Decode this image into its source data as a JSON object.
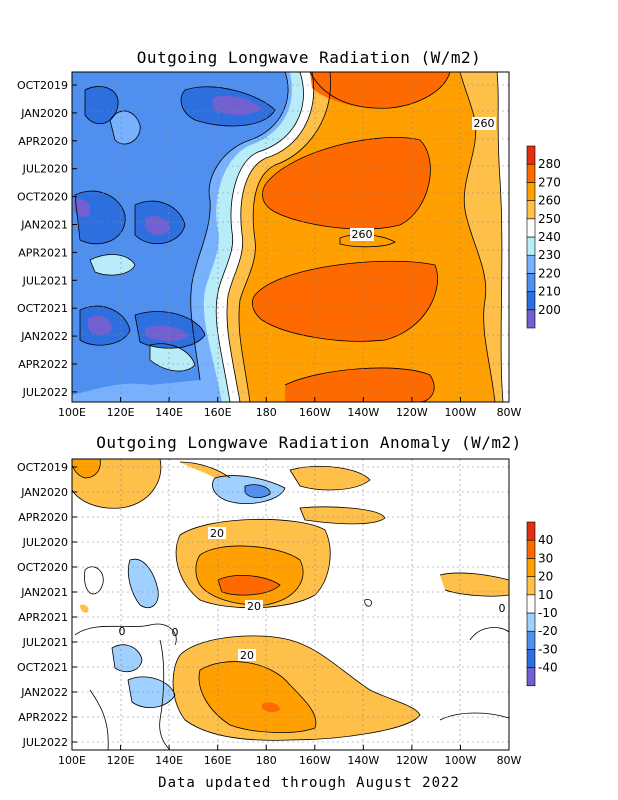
{
  "footer": "Data updated through August 2022",
  "chart_data": [
    {
      "type": "heatmap",
      "title": "Outgoing Longwave Radiation (W/m2)",
      "x_ticks": [
        "100E",
        "120E",
        "140E",
        "160E",
        "180",
        "160W",
        "140W",
        "120W",
        "100W",
        "80W"
      ],
      "y_ticks": [
        "OCT2019",
        "JAN2020",
        "APR2020",
        "JUL2020",
        "OCT2020",
        "JAN2021",
        "APR2021",
        "JUL2021",
        "OCT2021",
        "JAN2022",
        "APR2022",
        "JUL2022"
      ],
      "colorbar_levels": [
        "200",
        "210",
        "220",
        "230",
        "240",
        "250",
        "260",
        "270",
        "280"
      ],
      "colorbar_colors": [
        "#7060d0",
        "#2e6fe0",
        "#4f8ff0",
        "#78b2ff",
        "#b8ecf8",
        "#ffffff",
        "#ffc04a",
        "#ffa000",
        "#ff6a00",
        "#e03010"
      ],
      "contour_labels": [
        "260",
        "260"
      ]
    },
    {
      "type": "heatmap",
      "title": "Outgoing Longwave Radiation Anomaly (W/m2)",
      "x_ticks": [
        "100E",
        "120E",
        "140E",
        "160E",
        "180",
        "160W",
        "140W",
        "120W",
        "100W",
        "80W"
      ],
      "y_ticks": [
        "OCT2019",
        "JAN2020",
        "APR2020",
        "JUL2020",
        "OCT2020",
        "JAN2021",
        "APR2021",
        "JUL2021",
        "OCT2021",
        "JAN2022",
        "APR2022",
        "JUL2022"
      ],
      "colorbar_levels": [
        "-40",
        "-30",
        "-20",
        "-10",
        "10",
        "20",
        "30",
        "40"
      ],
      "colorbar_colors": [
        "#7060d0",
        "#2e6fe0",
        "#4f8ff0",
        "#a0d0ff",
        "#ffffff",
        "#ffc04a",
        "#ffa000",
        "#ff6a00",
        "#e03010"
      ],
      "contour_labels": [
        "20",
        "20",
        "20",
        "0",
        "0",
        "0"
      ]
    }
  ]
}
